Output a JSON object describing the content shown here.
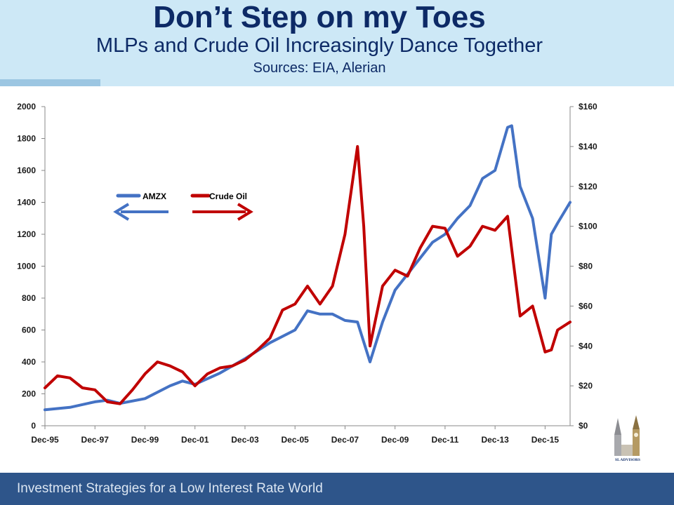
{
  "header": {
    "title": "Don’t Step on my Toes",
    "subtitle": "MLPs and Crude Oil Increasingly Dance Together",
    "sources": "Sources: EIA, Alerian"
  },
  "footer": {
    "text": "Investment Strategies for a Low Interest Rate World"
  },
  "logo": {
    "text": "SL ADVISORS"
  },
  "colors": {
    "header_bg": "#cde8f6",
    "title": "#0d2a66",
    "amzx": "#4472c4",
    "crude": "#c00000",
    "footer_bg": "#2e558a"
  },
  "chart_data": {
    "type": "line",
    "x_tick_labels": [
      "Dec-95",
      "Dec-97",
      "Dec-99",
      "Dec-01",
      "Dec-03",
      "Dec-05",
      "Dec-07",
      "Dec-09",
      "Dec-11",
      "Dec-13",
      "Dec-15"
    ],
    "y_left": {
      "ticks": [
        "0",
        "200",
        "400",
        "600",
        "800",
        "1000",
        "1200",
        "1400",
        "1600",
        "1800",
        "2000"
      ],
      "range": [
        0,
        2000
      ]
    },
    "y_right": {
      "ticks": [
        "$0",
        "$20",
        "$40",
        "$60",
        "$80",
        "$100",
        "$120",
        "$140",
        "$160"
      ],
      "range": [
        0,
        160
      ]
    },
    "x_range": [
      "1995-12",
      "2016-12"
    ],
    "grid": false,
    "legend_note": "arrows indicate axis: AMZX left, Crude Oil right",
    "series": [
      {
        "name": "AMZX",
        "axis": "left",
        "color": "#4472c4",
        "x": [
          "1995-12",
          "1996-12",
          "1997-12",
          "1998-06",
          "1998-12",
          "1999-12",
          "2000-12",
          "2001-06",
          "2001-12",
          "2002-12",
          "2003-12",
          "2004-12",
          "2005-12",
          "2006-06",
          "2006-12",
          "2007-06",
          "2007-12",
          "2008-06",
          "2008-12",
          "2009-06",
          "2009-12",
          "2010-12",
          "2011-06",
          "2011-12",
          "2012-06",
          "2012-12",
          "2013-06",
          "2013-12",
          "2014-06",
          "2014-08",
          "2014-12",
          "2015-06",
          "2015-12",
          "2016-03",
          "2016-06",
          "2016-12"
        ],
        "y": [
          100,
          115,
          150,
          160,
          140,
          170,
          250,
          280,
          260,
          330,
          420,
          520,
          600,
          720,
          700,
          700,
          660,
          650,
          400,
          650,
          850,
          1050,
          1150,
          1200,
          1300,
          1380,
          1550,
          1600,
          1870,
          1880,
          1500,
          1300,
          800,
          1200,
          1270,
          1400
        ]
      },
      {
        "name": "Crude Oil",
        "axis": "right",
        "color": "#c00000",
        "x": [
          "1995-12",
          "1996-06",
          "1996-12",
          "1997-06",
          "1997-12",
          "1998-06",
          "1998-12",
          "1999-06",
          "1999-12",
          "2000-06",
          "2000-12",
          "2001-06",
          "2001-12",
          "2002-06",
          "2002-12",
          "2003-06",
          "2003-12",
          "2004-06",
          "2004-12",
          "2005-06",
          "2005-12",
          "2006-06",
          "2006-12",
          "2007-06",
          "2007-12",
          "2008-06",
          "2008-09",
          "2008-12",
          "2009-06",
          "2009-12",
          "2010-06",
          "2010-12",
          "2011-06",
          "2011-12",
          "2012-06",
          "2012-12",
          "2013-06",
          "2013-12",
          "2014-06",
          "2014-12",
          "2015-06",
          "2015-12",
          "2016-03",
          "2016-06",
          "2016-12"
        ],
        "y": [
          19,
          25,
          24,
          19,
          18,
          12,
          11,
          18,
          26,
          32,
          30,
          27,
          20,
          26,
          29,
          30,
          33,
          38,
          44,
          58,
          61,
          70,
          61,
          70,
          96,
          140,
          100,
          40,
          70,
          78,
          75,
          89,
          100,
          99,
          85,
          90,
          100,
          98,
          105,
          55,
          60,
          37,
          38,
          48,
          52
        ]
      }
    ]
  }
}
